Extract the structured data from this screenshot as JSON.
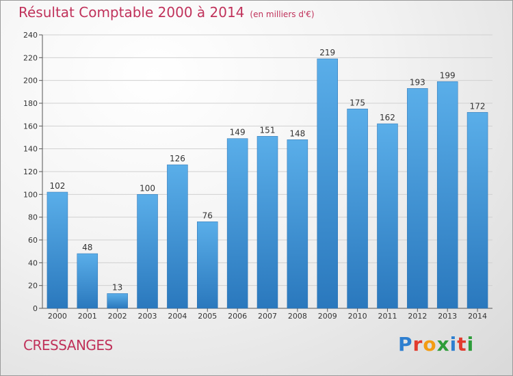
{
  "header": {
    "title": "Résultat Comptable 2000 à 2014",
    "subtitle": "(en milliers d'€)"
  },
  "footer": {
    "place": "CRESSANGES",
    "logo": {
      "letters": [
        "P",
        "r",
        "o",
        "x",
        "i",
        "t",
        "i"
      ],
      "colors": [
        "#2e7fd0",
        "#e23b2e",
        "#f39c12",
        "#2e9d3a",
        "#2e7fd0",
        "#e23b2e",
        "#2e9d3a"
      ]
    }
  },
  "chart_data": {
    "type": "bar",
    "categories": [
      "2000",
      "2001",
      "2002",
      "2003",
      "2004",
      "2005",
      "2006",
      "2007",
      "2008",
      "2009",
      "2010",
      "2011",
      "2012",
      "2013",
      "2014"
    ],
    "values": [
      102,
      48,
      13,
      100,
      126,
      76,
      149,
      151,
      148,
      219,
      175,
      162,
      193,
      199,
      172
    ],
    "title": "Résultat Comptable 2000 à 2014",
    "ylim": [
      0,
      240
    ],
    "yticks": [
      0,
      20,
      40,
      60,
      80,
      100,
      120,
      140,
      160,
      180,
      200,
      220,
      240
    ],
    "grid": true,
    "bar_color": "#3d93d6"
  }
}
